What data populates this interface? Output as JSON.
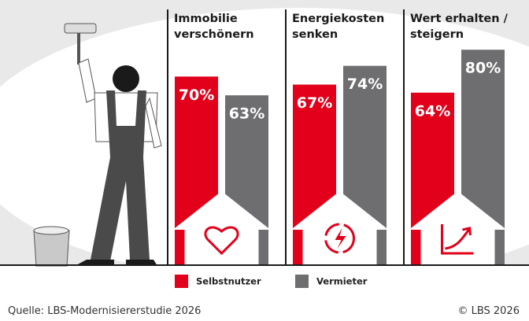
{
  "chart_data": {
    "type": "bar",
    "categories": [
      "Immobilie verschönern",
      "Energiekosten senken",
      "Wert erhalten / steigern"
    ],
    "series": [
      {
        "name": "Selbstnutzer",
        "color": "#e2001a",
        "values": [
          70,
          67,
          64
        ],
        "value_labels": [
          "70%",
          "67%",
          "64%"
        ]
      },
      {
        "name": "Vermieter",
        "color": "#6e6e70",
        "values": [
          63,
          74,
          80
        ],
        "value_labels": [
          "63%",
          "74%",
          "80%"
        ]
      }
    ],
    "ylim": [
      0,
      100
    ],
    "source": "Quelle: LBS-Modernisiererstudie 2026",
    "copyright": "© LBS 2026"
  }
}
